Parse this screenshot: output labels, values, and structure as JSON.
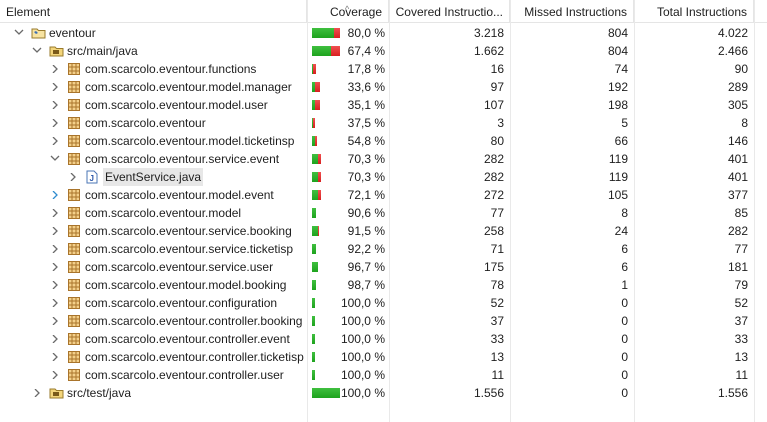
{
  "columns": {
    "element": "Element",
    "coverage": "Coverage",
    "covered": "Covered Instructio...",
    "missed": "Missed Instructions",
    "total": "Total Instructions"
  },
  "rows": [
    {
      "label": "eventour",
      "type": "project",
      "coverage": "80,0 %",
      "cov_fraction": 0.8,
      "covered": "3.218",
      "missed": "804",
      "total": "4.022",
      "twisty": "expanded"
    },
    {
      "label": "src/main/java",
      "type": "source-folder",
      "coverage": "67,4 %",
      "cov_fraction": 0.674,
      "covered": "1.662",
      "missed": "804",
      "total": "2.466",
      "twisty": "expanded"
    },
    {
      "label": "com.scarcolo.eventour.functions",
      "type": "package",
      "coverage": "17,8 %",
      "cov_fraction": 0.178,
      "covered": "16",
      "missed": "74",
      "total": "90",
      "twisty": "collapsed"
    },
    {
      "label": "com.scarcolo.eventour.model.manager",
      "type": "package",
      "coverage": "33,6 %",
      "cov_fraction": 0.336,
      "covered": "97",
      "missed": "192",
      "total": "289",
      "twisty": "collapsed"
    },
    {
      "label": "com.scarcolo.eventour.model.user",
      "type": "package",
      "coverage": "35,1 %",
      "cov_fraction": 0.351,
      "covered": "107",
      "missed": "198",
      "total": "305",
      "twisty": "collapsed"
    },
    {
      "label": "com.scarcolo.eventour",
      "type": "package",
      "coverage": "37,5 %",
      "cov_fraction": 0.375,
      "covered": "3",
      "missed": "5",
      "total": "8",
      "twisty": "collapsed"
    },
    {
      "label": "com.scarcolo.eventour.model.ticketinsp",
      "type": "package",
      "coverage": "54,8 %",
      "cov_fraction": 0.548,
      "covered": "80",
      "missed": "66",
      "total": "146",
      "twisty": "collapsed"
    },
    {
      "label": "com.scarcolo.eventour.service.event",
      "type": "package",
      "coverage": "70,3 %",
      "cov_fraction": 0.703,
      "covered": "282",
      "missed": "119",
      "total": "401",
      "twisty": "expanded"
    },
    {
      "label": "EventService.java",
      "type": "java-file",
      "coverage": "70,3 %",
      "cov_fraction": 0.703,
      "covered": "282",
      "missed": "119",
      "total": "401",
      "twisty": "collapsed"
    },
    {
      "label": "com.scarcolo.eventour.model.event",
      "type": "package",
      "coverage": "72,1 %",
      "cov_fraction": 0.721,
      "covered": "272",
      "missed": "105",
      "total": "377",
      "twisty": "collapsed-blue"
    },
    {
      "label": "com.scarcolo.eventour.model",
      "type": "package",
      "coverage": "90,6 %",
      "cov_fraction": 0.906,
      "covered": "77",
      "missed": "8",
      "total": "85",
      "twisty": "collapsed"
    },
    {
      "label": "com.scarcolo.eventour.service.booking",
      "type": "package",
      "coverage": "91,5 %",
      "cov_fraction": 0.915,
      "covered": "258",
      "missed": "24",
      "total": "282",
      "twisty": "collapsed"
    },
    {
      "label": "com.scarcolo.eventour.service.ticketisp",
      "type": "package",
      "coverage": "92,2 %",
      "cov_fraction": 0.922,
      "covered": "71",
      "missed": "6",
      "total": "77",
      "twisty": "collapsed"
    },
    {
      "label": "com.scarcolo.eventour.service.user",
      "type": "package",
      "coverage": "96,7 %",
      "cov_fraction": 0.967,
      "covered": "175",
      "missed": "6",
      "total": "181",
      "twisty": "collapsed"
    },
    {
      "label": "com.scarcolo.eventour.model.booking",
      "type": "package",
      "coverage": "98,7 %",
      "cov_fraction": 0.987,
      "covered": "78",
      "missed": "1",
      "total": "79",
      "twisty": "collapsed"
    },
    {
      "label": "com.scarcolo.eventour.configuration",
      "type": "package",
      "coverage": "100,0 %",
      "cov_fraction": 1.0,
      "covered": "52",
      "missed": "0",
      "total": "52",
      "twisty": "collapsed"
    },
    {
      "label": "com.scarcolo.eventour.controller.booking",
      "type": "package",
      "coverage": "100,0 %",
      "cov_fraction": 1.0,
      "covered": "37",
      "missed": "0",
      "total": "37",
      "twisty": "collapsed"
    },
    {
      "label": "com.scarcolo.eventour.controller.event",
      "type": "package",
      "coverage": "100,0 %",
      "cov_fraction": 1.0,
      "covered": "33",
      "missed": "0",
      "total": "33",
      "twisty": "collapsed"
    },
    {
      "label": "com.scarcolo.eventour.controller.ticketisp",
      "type": "package",
      "coverage": "100,0 %",
      "cov_fraction": 1.0,
      "covered": "13",
      "missed": "0",
      "total": "13",
      "twisty": "collapsed"
    },
    {
      "label": "com.scarcolo.eventour.controller.user",
      "type": "package",
      "coverage": "100,0 %",
      "cov_fraction": 1.0,
      "covered": "11",
      "missed": "0",
      "total": "11",
      "twisty": "collapsed"
    },
    {
      "label": "src/test/java",
      "type": "source-folder",
      "coverage": "100,0 %",
      "cov_fraction": 1.0,
      "covered": "1.556",
      "missed": "0",
      "total": "1.556",
      "twisty": "collapsed"
    }
  ],
  "colors": {
    "covered": "#2db82d",
    "missed": "#e53b3b",
    "selection": "#e7e7e7",
    "grid": "#e5e5e5"
  },
  "icons": {
    "project": "project-folder-icon",
    "source-folder": "source-folder-icon",
    "package": "package-icon",
    "java-file": "java-file-icon",
    "sort": "sort-indicator-icon"
  }
}
